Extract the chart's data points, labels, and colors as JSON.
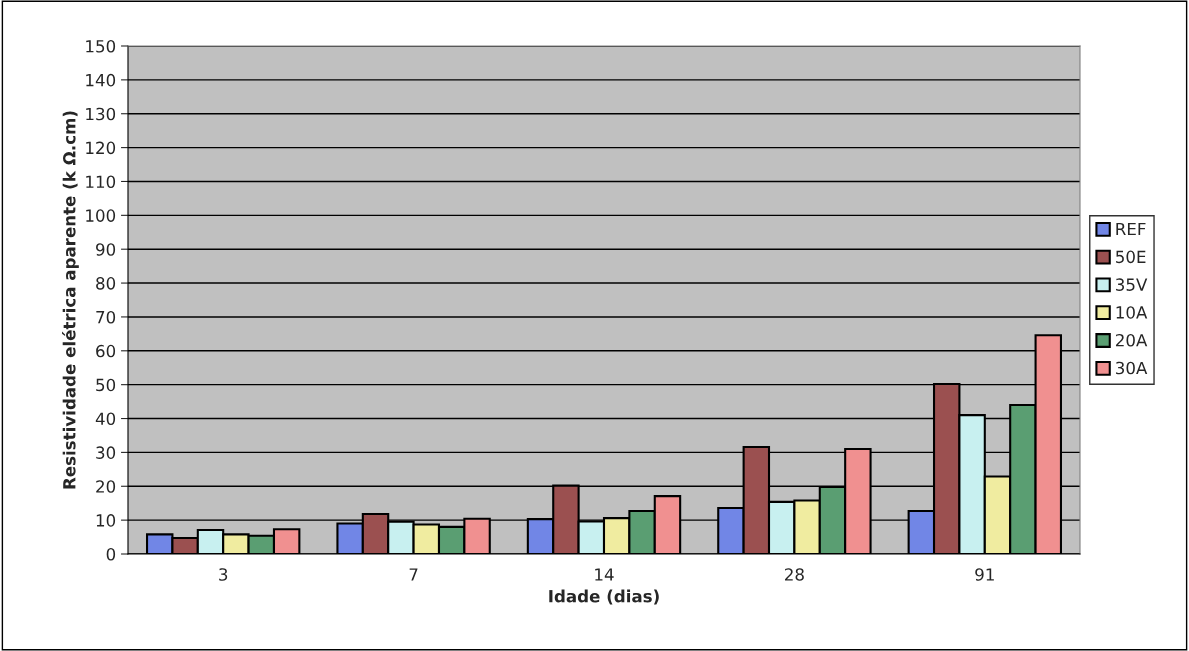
{
  "chart_data": {
    "type": "bar",
    "xlabel": "Idade (dias)",
    "ylabel": "Resistividade elétrica aparente (k Ω.cm)",
    "categories": [
      "3",
      "7",
      "14",
      "28",
      "91"
    ],
    "series": [
      {
        "name": "REF",
        "color": "#7186e6",
        "values": [
          5.8,
          9.0,
          10.3,
          13.6,
          12.7
        ]
      },
      {
        "name": "50E",
        "color": "#9b5050",
        "values": [
          4.7,
          11.8,
          20.2,
          31.6,
          50.2
        ]
      },
      {
        "name": "35V",
        "color": "#c8f0f0",
        "values": [
          7.1,
          9.5,
          9.6,
          15.4,
          41.0
        ]
      },
      {
        "name": "10A",
        "color": "#f0eca0",
        "values": [
          5.8,
          8.7,
          10.6,
          15.8,
          22.9
        ]
      },
      {
        "name": "20A",
        "color": "#5a9e72",
        "values": [
          5.4,
          8.0,
          12.7,
          19.8,
          44.0
        ]
      },
      {
        "name": "30A",
        "color": "#f09090",
        "values": [
          7.3,
          10.4,
          17.1,
          31.0,
          64.6
        ]
      }
    ],
    "ylim": [
      0,
      150
    ],
    "yticks": [
      0,
      10,
      20,
      30,
      40,
      50,
      60,
      70,
      80,
      90,
      100,
      110,
      120,
      130,
      140,
      150
    ],
    "grid": "y",
    "legend": "right"
  }
}
